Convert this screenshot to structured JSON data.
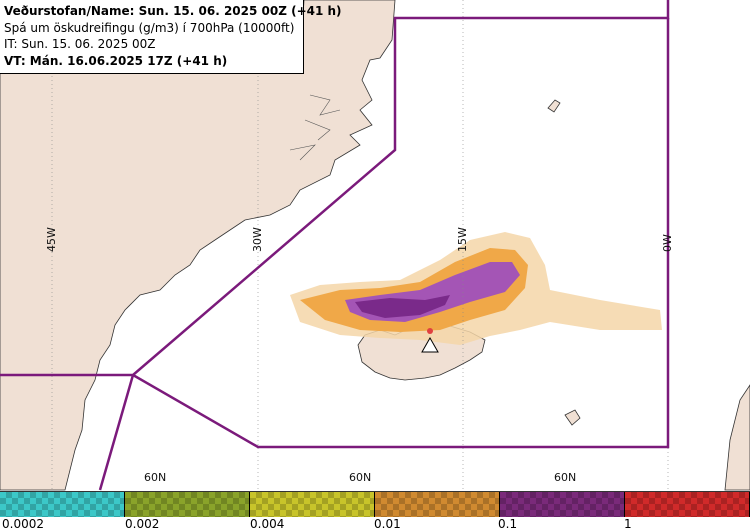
{
  "header": {
    "line1": "Veðurstofan/Name: Sun. 15. 06. 2025 00Z (+41 h)",
    "line2": "Spá um öskudreifingu (g/m3) í 700hPa (10000ft)",
    "line3": "IT: Sun. 15. 06. 2025 00Z",
    "line4": "VT: Mán. 16.06.2025 17Z (+41 h)"
  },
  "graticule": {
    "longitudes": [
      "45W",
      "30W",
      "15W",
      "0W"
    ],
    "latitudes": [
      "60N",
      "60N",
      "60N"
    ]
  },
  "legend": {
    "ticks": [
      "0.0002",
      "0.002",
      "0.004",
      "0.01",
      "0.1",
      "1"
    ],
    "colors": [
      "#3cc8c8",
      "#8aa32a",
      "#c8c42a",
      "#d08a30",
      "#7a2a7a",
      "#d02a2a"
    ]
  },
  "colors": {
    "land": "#f0e0d4",
    "sea": "#ffffff",
    "boundary": "#7b1a7b",
    "ash_low": "#f5c88a",
    "ash_mid": "#f0a040",
    "ash_high": "#a050b0"
  }
}
